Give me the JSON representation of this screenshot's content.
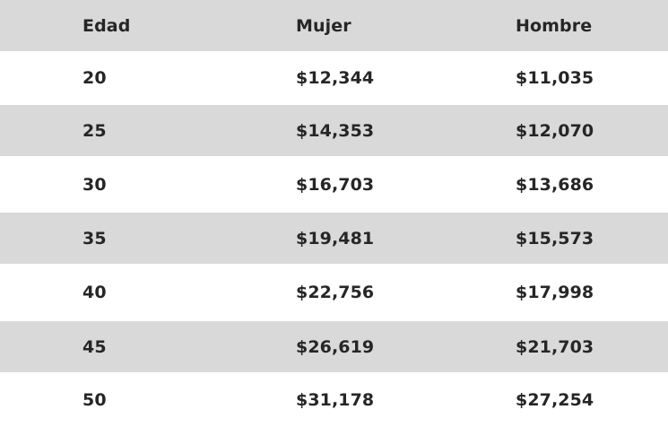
{
  "table": {
    "headers": [
      "Edad",
      "Mujer",
      "Hombre"
    ],
    "rows": [
      [
        "20",
        "$12,344",
        "$11,035"
      ],
      [
        "25",
        "$14,353",
        "$12,070"
      ],
      [
        "30",
        "$16,703",
        "$13,686"
      ],
      [
        "35",
        "$19,481",
        "$15,573"
      ],
      [
        "40",
        "$22,756",
        "$17,998"
      ],
      [
        "45",
        "$26,619",
        "$21,703"
      ],
      [
        "50",
        "$31,178",
        "$27,254"
      ]
    ]
  },
  "colors": {
    "stripe": "#d9d9d9",
    "background": "#ffffff",
    "text": "#262626"
  }
}
